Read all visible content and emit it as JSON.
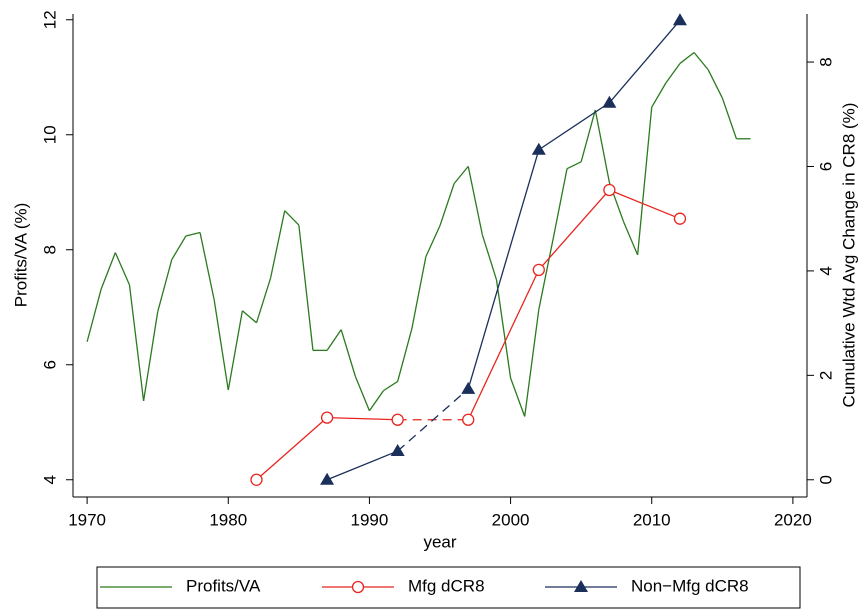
{
  "chart_data": {
    "type": "line",
    "x_label": "year",
    "y_label": "Profits/VA (%)",
    "y2_label": "Cumulative Wtd Avg Change in CR8 (%)",
    "xlim": [
      1969,
      2021
    ],
    "xticks": [
      1970,
      1980,
      1990,
      2000,
      2010,
      2020
    ],
    "ylim": [
      3.7,
      12.1
    ],
    "yticks": [
      4,
      6,
      8,
      10,
      12
    ],
    "y2lim": [
      -0.33,
      8.92
    ],
    "y2ticks": [
      0,
      2,
      4,
      6,
      8
    ],
    "legend": "bottom",
    "series": [
      {
        "name": "Profits/VA",
        "color": "#2a7a1e",
        "marker": "none",
        "x": [
          1970,
          1971,
          1972,
          1973,
          1974,
          1975,
          1976,
          1977,
          1978,
          1979,
          1980,
          1981,
          1982,
          1983,
          1984,
          1985,
          1986,
          1987,
          1988,
          1989,
          1990,
          1991,
          1992,
          1993,
          1994,
          1995,
          1996,
          1997,
          1998,
          1999,
          2000,
          2001,
          2002,
          2003,
          2004,
          2005,
          2006,
          2007,
          2008,
          2009,
          2010,
          2011,
          2012,
          2013,
          2014,
          2015,
          2016,
          2017
        ],
        "values": [
          6.4,
          7.32,
          7.95,
          7.39,
          5.37,
          6.92,
          7.83,
          8.24,
          8.3,
          7.13,
          5.56,
          6.94,
          6.73,
          7.51,
          8.68,
          8.43,
          6.25,
          6.25,
          6.61,
          5.8,
          5.2,
          5.55,
          5.71,
          6.62,
          7.88,
          8.42,
          9.15,
          9.45,
          8.26,
          7.48,
          5.77,
          5.1,
          6.96,
          8.17,
          9.41,
          9.53,
          10.43,
          9.17,
          8.49,
          7.91,
          10.48,
          10.9,
          11.24,
          11.43,
          11.13,
          10.64,
          9.93,
          9.93
        ]
      },
      {
        "name": "Mfg dCR8",
        "color": "#e8251f",
        "marker": "circle-open",
        "axis": "y2",
        "dashed_segments": [
          2
        ],
        "x": [
          1982,
          1987,
          1992,
          1997,
          2002,
          2007,
          2012
        ],
        "values": [
          0,
          1.19,
          1.15,
          1.15,
          4.02,
          5.55,
          5.0
        ]
      },
      {
        "name": "Non−Mfg dCR8",
        "color": "#1a2f5a",
        "marker": "triangle",
        "axis": "y2",
        "dashed_segments": [
          1
        ],
        "x": [
          1987,
          1992,
          1997,
          2002,
          2007,
          2012
        ],
        "values": [
          0,
          0.55,
          1.74,
          6.32,
          7.22,
          8.8
        ]
      }
    ]
  }
}
